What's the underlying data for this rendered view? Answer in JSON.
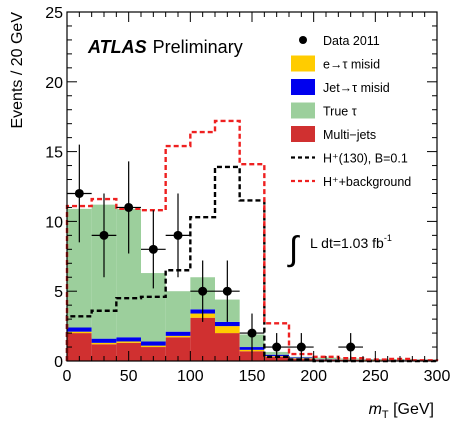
{
  "chart_data": {
    "type": "histogram",
    "experiment_label": "ATLAS",
    "experiment_sublabel": "Preliminary",
    "xlabel_main": "m",
    "xlabel_sub": "T",
    "xlabel_unit": " [GeV]",
    "ylabel": "Events / 20 GeV",
    "xlim": [
      0,
      300
    ],
    "ylim": [
      0,
      25
    ],
    "x_ticks": [
      0,
      50,
      100,
      150,
      200,
      250,
      300
    ],
    "y_ticks": [
      0,
      5,
      10,
      15,
      20,
      25
    ],
    "bin_edges": [
      0,
      20,
      40,
      60,
      80,
      100,
      120,
      140,
      160,
      180,
      200,
      220,
      240,
      260,
      280,
      300
    ],
    "stack": [
      {
        "name": "Multi−jets",
        "color": "#d03030",
        "values": [
          2.0,
          1.2,
          1.3,
          1.0,
          1.7,
          3.1,
          2.0,
          0.7,
          0.3,
          0.15,
          0.1,
          0.08,
          0.05,
          0.05,
          0.02
        ]
      },
      {
        "name": "e→τ misid",
        "color": "#ffcc00",
        "values": [
          0.1,
          0.1,
          0.1,
          0.1,
          0.1,
          0.3,
          0.5,
          0.1,
          0.05,
          0.05,
          0.02,
          0.02,
          0.02,
          0.01,
          0.01
        ]
      },
      {
        "name": "Jet→τ misid",
        "color": "#0000ee",
        "values": [
          0.3,
          0.3,
          0.3,
          0.3,
          0.3,
          0.3,
          0.3,
          0.2,
          0.1,
          0.05,
          0.02,
          0.02,
          0.02,
          0.01,
          0.01
        ]
      },
      {
        "name": "True τ",
        "color": "#9ccf9c",
        "values": [
          8.5,
          9.6,
          9.2,
          4.9,
          2.9,
          2.3,
          1.6,
          0.9,
          0.2,
          0.05,
          0.1,
          0.06,
          0.05,
          0.06,
          0.04
        ]
      }
    ],
    "signal": {
      "name": "H⁺(130), B=0.1",
      "color": "#000000",
      "values": [
        3.2,
        3.6,
        4.5,
        4.6,
        6.5,
        10.3,
        13.9,
        11.5,
        0.3,
        0.1,
        0,
        0,
        0,
        0,
        0
      ]
    },
    "signal_plus_bkg": {
      "name": "H⁺+background",
      "color": "#ee2020",
      "values": [
        11.1,
        11.6,
        10.9,
        10.8,
        15.4,
        16.4,
        17.2,
        14.1,
        2.7,
        0.5,
        0.3,
        0.2,
        0.1,
        0.15,
        0.05
      ]
    },
    "data": {
      "name": "Data 2011",
      "points": [
        {
          "x": 10,
          "y": 12,
          "err": 3.5
        },
        {
          "x": 30,
          "y": 9,
          "err": 3.0
        },
        {
          "x": 50,
          "y": 11,
          "err": 3.3
        },
        {
          "x": 70,
          "y": 8,
          "err": 2.8
        },
        {
          "x": 90,
          "y": 9,
          "err": 3.0
        },
        {
          "x": 110,
          "y": 5,
          "err": 2.2
        },
        {
          "x": 130,
          "y": 5,
          "err": 2.2
        },
        {
          "x": 150,
          "y": 2,
          "err": 1.4
        },
        {
          "x": 170,
          "y": 1,
          "err": 1.0
        },
        {
          "x": 190,
          "y": 1,
          "err": 1.0
        },
        {
          "x": 230,
          "y": 1,
          "err": 1.0
        }
      ]
    },
    "lumi_text": "L dt=1.03 fb",
    "lumi_exp": "-1",
    "legend_position": "top-right"
  }
}
